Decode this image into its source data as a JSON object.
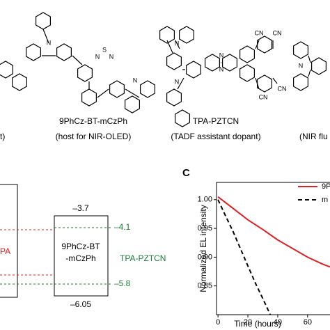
{
  "structures": {
    "left_fragment_role": "t)",
    "molecules": [
      {
        "name": "9PhCz-BT-mCzPh",
        "role": "(host for NIR-OLED)"
      },
      {
        "name": "TPA-PZTCN",
        "role": "(TADF assistant dopant)"
      }
    ],
    "right_fragment_role": "(NIR flu",
    "atom_labels": [
      "N",
      "N",
      "S",
      "N",
      "N",
      "N",
      "N",
      "N",
      "N",
      "CN",
      "CN",
      "CN",
      "CN",
      "N"
    ]
  },
  "energy_diagram": {
    "left_label": "PA",
    "box_label": [
      "9PhCz-BT",
      "-mCzPh"
    ],
    "lumo": "–3.7",
    "homo": "–6.05",
    "dopant": "TPA-PZTCN",
    "dopant_lumo": "–4.1",
    "dopant_homo": "–5.8"
  },
  "chart_data": {
    "type": "line",
    "panel_label": "C",
    "ylabel": "Normalized EL intensity",
    "xlabel": "Time (hours)",
    "xlim": [
      -1,
      75
    ],
    "ylim": [
      0.8,
      1.03
    ],
    "xticks": [
      0,
      20,
      40,
      60
    ],
    "yticks": [
      0.85,
      {
        "value": 0.9,
        "label": "0.90"
      },
      0.95,
      {
        "value": 1.0,
        "label": "1.00"
      }
    ],
    "series": [
      {
        "name": "9P",
        "color": "#e02020",
        "dash": false,
        "x": [
          0,
          10,
          20,
          30,
          40,
          50,
          60,
          70,
          75
        ],
        "values": [
          1.005,
          0.985,
          0.965,
          0.948,
          0.93,
          0.915,
          0.9,
          0.888,
          0.883
        ]
      },
      {
        "name": "m",
        "color": "#000000",
        "dash": true,
        "x": [
          0,
          5,
          10,
          15,
          20,
          25,
          30,
          35
        ],
        "values": [
          1.0,
          0.972,
          0.945,
          0.915,
          0.885,
          0.855,
          0.828,
          0.8
        ]
      }
    ]
  }
}
